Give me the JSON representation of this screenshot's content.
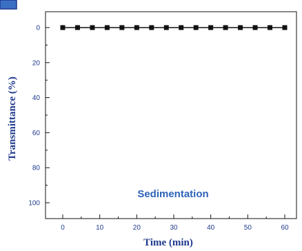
{
  "chart_data": {
    "type": "line",
    "xlabel": "Time (min)",
    "ylabel": "Transmittance (%)",
    "annotation": "Sedimentation",
    "xlim": [
      -5,
      63
    ],
    "ylim": [
      0,
      100
    ],
    "y_inverted": true,
    "x_ticks": [
      0,
      10,
      20,
      30,
      40,
      50,
      60
    ],
    "y_ticks": [
      0,
      20,
      40,
      60,
      80,
      100
    ],
    "series": [
      {
        "x": [
          0,
          4,
          8,
          12,
          16,
          20,
          24,
          28,
          32,
          36,
          40,
          44,
          48,
          52,
          56,
          60
        ],
        "values": [
          0,
          0,
          0,
          0,
          0,
          0,
          0,
          0,
          0,
          0,
          0,
          0,
          0,
          0,
          0,
          0
        ],
        "marker": "square",
        "color": "#111111"
      }
    ],
    "colors": {
      "text": "#1f3a8c",
      "axis": "#111111",
      "annotation": "#2c63b8",
      "corner_icon": "#3a6fc4"
    }
  }
}
